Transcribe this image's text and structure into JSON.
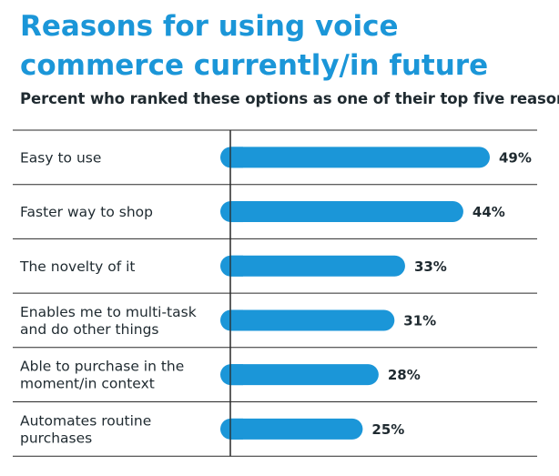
{
  "title": "Reasons for using voice commerce currently/in future",
  "subtitle": "Percent who ranked these options as one of their top five reasons",
  "colors": {
    "title": "#1b96d8",
    "bar": "#1b96d8",
    "text": "#1f2a30",
    "rule": "#2a2a2a"
  },
  "chart_data": {
    "type": "bar",
    "orientation": "horizontal",
    "title": "Reasons for using voice commerce currently/in future",
    "subtitle": "Percent who ranked these options as one of their top five reasons",
    "categories": [
      "Easy to use",
      "Faster way to shop",
      "The novelty of it",
      "Enables me to multi-task and do other things",
      "Able to purchase in the moment/in context",
      "Automates routine purchases"
    ],
    "category_lines": [
      [
        "Easy to use"
      ],
      [
        "Faster way to shop"
      ],
      [
        "The novelty of it"
      ],
      [
        "Enables me to multi-task",
        "and do other things"
      ],
      [
        "Able to purchase in the",
        "moment/in context"
      ],
      [
        "Automates routine",
        "purchases"
      ]
    ],
    "values": [
      49,
      44,
      33,
      31,
      28,
      25
    ],
    "value_labels": [
      "49%",
      "44%",
      "33%",
      "31%",
      "28%",
      "25%"
    ],
    "unit": "%",
    "xlim": [
      0,
      100
    ],
    "grid": false,
    "legend": "none"
  }
}
